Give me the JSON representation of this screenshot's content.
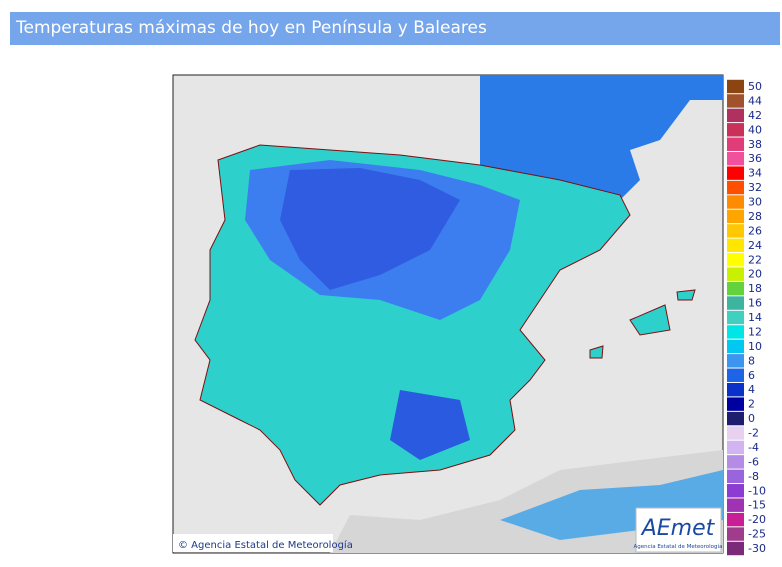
{
  "header": {
    "title": "Temperaturas máximas de hoy en Península y Baleares"
  },
  "map": {
    "copyright": "© Agencia Estatal de Meteorología",
    "logo": "AEmet",
    "logo_subtitle": "Agencia Estatal de Meteorología"
  },
  "legend": {
    "items": [
      {
        "label": "50",
        "color": "#8b4513"
      },
      {
        "label": "44",
        "color": "#a0522d"
      },
      {
        "label": "42",
        "color": "#b03060"
      },
      {
        "label": "40",
        "color": "#c8325a"
      },
      {
        "label": "38",
        "color": "#e03c78"
      },
      {
        "label": "36",
        "color": "#f0509c"
      },
      {
        "label": "34",
        "color": "#ff0000"
      },
      {
        "label": "32",
        "color": "#ff5000"
      },
      {
        "label": "30",
        "color": "#ff8c00"
      },
      {
        "label": "28",
        "color": "#ffa500"
      },
      {
        "label": "26",
        "color": "#ffc800"
      },
      {
        "label": "24",
        "color": "#ffe600"
      },
      {
        "label": "22",
        "color": "#ffff00"
      },
      {
        "label": "20",
        "color": "#c8f000"
      },
      {
        "label": "18",
        "color": "#64d23c"
      },
      {
        "label": "16",
        "color": "#3cb4a0"
      },
      {
        "label": "14",
        "color": "#40d0c0"
      },
      {
        "label": "12",
        "color": "#00e6e6"
      },
      {
        "label": "10",
        "color": "#00c8f0"
      },
      {
        "label": "8",
        "color": "#3c96f0"
      },
      {
        "label": "6",
        "color": "#1e64e6"
      },
      {
        "label": "4",
        "color": "#0a32c8"
      },
      {
        "label": "2",
        "color": "#0000a0"
      },
      {
        "label": "0",
        "color": "#1e1e6e"
      },
      {
        "label": "-2",
        "color": "#e6d2f0"
      },
      {
        "label": "-4",
        "color": "#d2b4f0"
      },
      {
        "label": "-6",
        "color": "#b48ce6"
      },
      {
        "label": "-8",
        "color": "#9a64dc"
      },
      {
        "label": "-10",
        "color": "#8c3cd2"
      },
      {
        "label": "-15",
        "color": "#a032b4"
      },
      {
        "label": "-20",
        "color": "#c81e96"
      },
      {
        "label": "-25",
        "color": "#a03c8c"
      },
      {
        "label": "-30",
        "color": "#7a2a78"
      }
    ]
  }
}
